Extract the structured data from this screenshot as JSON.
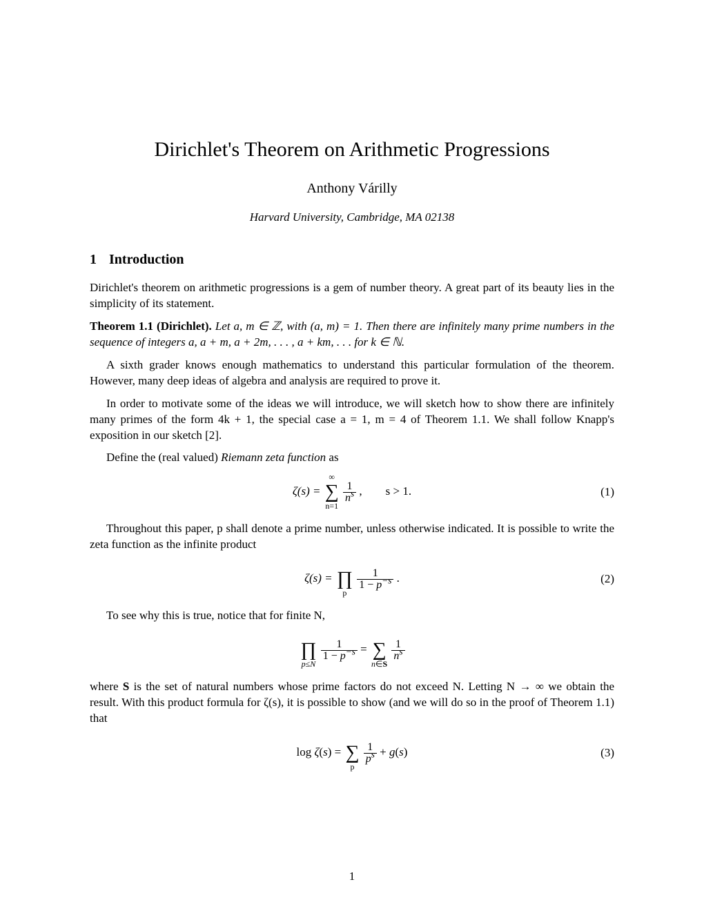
{
  "title": "Dirichlet's Theorem on Arithmetic Progressions",
  "author": "Anthony Várilly",
  "affiliation": "Harvard University, Cambridge, MA 02138",
  "section": {
    "number": "1",
    "title": "Introduction"
  },
  "para1": "Dirichlet's theorem on arithmetic progressions is a gem of number theory. A great part of its beauty lies in the simplicity of its statement.",
  "theorem": {
    "head": "Theorem 1.1 (Dirichlet).",
    "body_pre": "Let a, m ∈ ",
    "body_mid": ", with (a, m) = 1. Then there are infinitely many prime numbers in the sequence of integers a, a + m, a + 2m, . . . , a + km, . . .  for k ∈ ",
    "body_end": "."
  },
  "para2a": "A sixth grader knows enough mathematics to understand this particular formulation of the theorem. However, many deep ideas of algebra and analysis are required to prove it.",
  "para2b": "In order to motivate some of the ideas we will introduce, we will sketch how to show there are infinitely many primes of the form 4k + 1, the special case a = 1, m = 4 of Theorem 1.1. We shall follow Knapp's exposition in our sketch [2].",
  "para2c_pre": "Define the (real valued) ",
  "para2c_em": "Riemann zeta function",
  "para2c_post": " as",
  "eq1": {
    "lhs": "ζ(s) = ",
    "sumTop": "∞",
    "sumBot": "n=1",
    "fracNum": "1",
    "fracDen": "nˢ",
    "cond": ",  s > 1.",
    "num": "(1)"
  },
  "para3": "Throughout this paper, p shall denote a prime number, unless otherwise indicated. It is possible to write the zeta function as the infinite product",
  "eq2": {
    "lhs": "ζ(s) = ",
    "prodBot": "p",
    "fracNum": "1",
    "fracDen": "1 − p⁻ˢ",
    "end": ".",
    "num": "(2)"
  },
  "para4": "To see why this is true, notice that for finite N,",
  "eq3": {
    "prodBot": "p≤N",
    "fracNum1": "1",
    "fracDen1": "1 − p⁻ˢ",
    "mid": " = ",
    "sumBot": "n∈S",
    "fracNum2": "1",
    "fracDen2": "nˢ"
  },
  "para5_pre": "where ",
  "para5_bold": "S",
  "para5_post": " is the set of natural numbers whose prime factors do not exceed N. Letting N → ∞ we obtain the result. With this product formula for ζ(s), it is possible to show (and we will do so in the proof of Theorem 1.1) that",
  "eq4": {
    "lhs": "log ζ(s) = ",
    "sumBot": "p",
    "fracNum": "1",
    "fracDen": "pˢ",
    "rhs": " + g(s)",
    "num": "(3)"
  },
  "pageNumber": "1",
  "symbols": {
    "Z": "ℤ",
    "N": "ℕ"
  }
}
